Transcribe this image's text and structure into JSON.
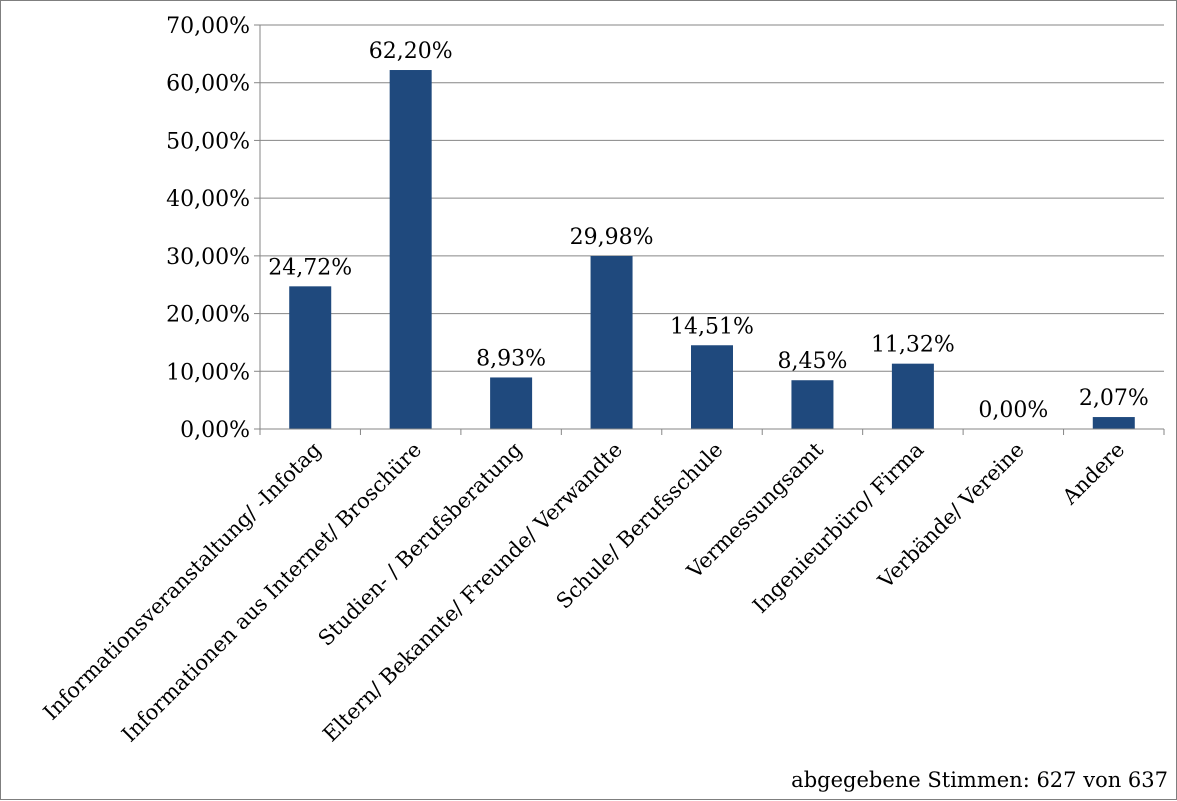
{
  "chart_data": {
    "type": "bar",
    "categories": [
      "Informationsveranstaltung/ -Infotag",
      "Informationen aus Internet/ Broschüre",
      "Studien- / Berufsberatung",
      "Eltern/ Bekannte/ Freunde/ Verwandte",
      "Schule/ Berufsschule",
      "Vermessungsamt",
      "Ingenieurbüro/ Firma",
      "Verbände/ Vereine",
      "Andere"
    ],
    "values": [
      24.72,
      62.2,
      8.93,
      29.98,
      14.51,
      8.45,
      11.32,
      0.0,
      2.07
    ],
    "data_labels": [
      "24,72%",
      "62,20%",
      "8,93%",
      "29,98%",
      "14,51%",
      "8,45%",
      "11,32%",
      "0,00%",
      "2,07%"
    ],
    "y_ticks": [
      0,
      10,
      20,
      30,
      40,
      50,
      60,
      70
    ],
    "y_tick_labels": [
      "0,00%",
      "10,00%",
      "20,00%",
      "30,00%",
      "40,00%",
      "50,00%",
      "60,00%",
      "70,00%"
    ],
    "ylim": [
      0,
      70
    ],
    "grid": true,
    "bar_color": "#1f497d",
    "title": "",
    "xlabel": "",
    "ylabel": "",
    "annotation": "abgegebene Stimmen: 627 von 637"
  }
}
